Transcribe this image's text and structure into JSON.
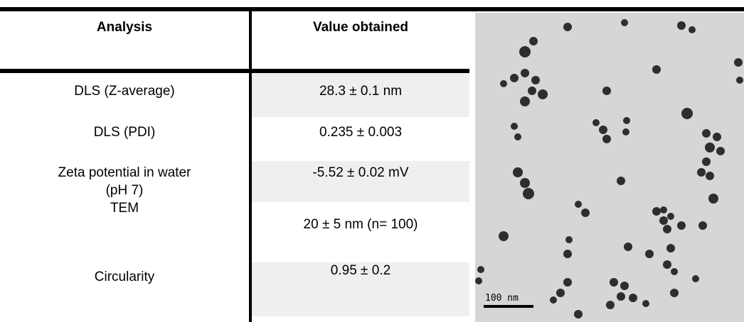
{
  "table": {
    "header": [
      "Analysis",
      "Value obtained"
    ],
    "rows": [
      [
        "DLS (Z-average)",
        "28.3 ± 0.1 nm"
      ],
      [
        "DLS (PDI)",
        "0.235 ± 0.003"
      ],
      [
        [
          "Zeta potential in water",
          "(pH 7)"
        ],
        "-5.52 ± 0.02 mV"
      ],
      [
        "TEM",
        "20 ± 5 nm (n= 100)"
      ],
      [
        "Circularity",
        "0.95 ± 0.2"
      ]
    ]
  },
  "image": {
    "scale_bar": "100 nm"
  }
}
